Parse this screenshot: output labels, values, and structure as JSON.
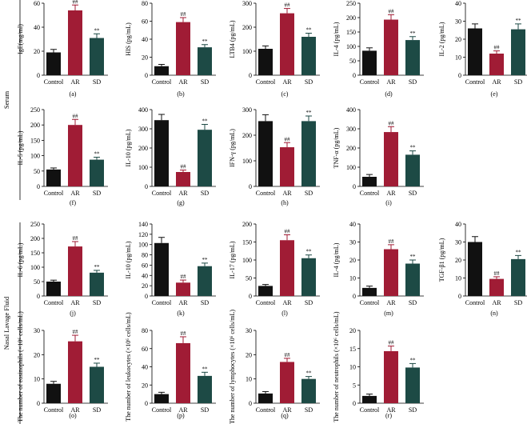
{
  "chart_data": {
    "type": "bar",
    "categories": [
      "Control",
      "AR",
      "SD"
    ],
    "colors": {
      "Control": "#111111",
      "AR": "#a01c35",
      "SD": "#1d4a45"
    },
    "group_labels": {
      "serum": "Serum",
      "nalf": "Nasal Lavage Fluid"
    },
    "panels": [
      {
        "id": "a",
        "panel_label": "(a)",
        "ylabel": "IgE(mg/ml)",
        "yticks": [
          "0",
          "20",
          "40",
          "60"
        ],
        "ylim": [
          0,
          60
        ],
        "values": [
          19,
          54,
          31
        ],
        "errors": [
          2.5,
          4.5,
          3.5
        ],
        "annotations": [
          "",
          "##",
          "**"
        ]
      },
      {
        "id": "b",
        "panel_label": "(b)",
        "ylabel": "HIS (pg/mL)",
        "yticks": [
          "0",
          "20",
          "40",
          "60",
          "80"
        ],
        "ylim": [
          0,
          80
        ],
        "values": [
          10,
          59,
          31
        ],
        "errors": [
          2,
          5,
          3
        ],
        "annotations": [
          "",
          "##",
          "**"
        ]
      },
      {
        "id": "c",
        "panel_label": "(c)",
        "ylabel": "LTB4 (pg/mL)",
        "yticks": [
          "0",
          "100",
          "200",
          "300"
        ],
        "ylim": [
          0,
          300
        ],
        "values": [
          110,
          258,
          160
        ],
        "errors": [
          12,
          20,
          15
        ],
        "annotations": [
          "",
          "##",
          "**"
        ]
      },
      {
        "id": "d",
        "panel_label": "(d)",
        "ylabel": "IL-4 (pg/mL)",
        "yticks": [
          "0",
          "50",
          "100",
          "150",
          "200",
          "250"
        ],
        "ylim": [
          0,
          250
        ],
        "values": [
          85,
          193,
          122
        ],
        "errors": [
          10,
          17,
          12
        ],
        "annotations": [
          "",
          "##",
          "**"
        ]
      },
      {
        "id": "e",
        "panel_label": "(e)",
        "ylabel": "IL-2 (pg/mL)",
        "yticks": [
          "0",
          "10",
          "20",
          "30",
          "40"
        ],
        "ylim": [
          0,
          40
        ],
        "values": [
          26,
          12,
          25.5
        ],
        "errors": [
          2.5,
          1.5,
          3
        ],
        "annotations": [
          "",
          "##",
          "**"
        ]
      },
      {
        "id": "f",
        "panel_label": "(f)",
        "ylabel": "IL-5 (pg/mL)",
        "yticks": [
          "0",
          "50",
          "100",
          "150",
          "200",
          "250"
        ],
        "ylim": [
          0,
          250
        ],
        "values": [
          55,
          200,
          87
        ],
        "errors": [
          5,
          18,
          8
        ],
        "annotations": [
          "",
          "##",
          "**"
        ]
      },
      {
        "id": "g",
        "panel_label": "(g)",
        "ylabel": "IL-10 (pg/mL)",
        "yticks": [
          "0",
          "100",
          "200",
          "300",
          "400"
        ],
        "ylim": [
          0,
          400
        ],
        "values": [
          345,
          75,
          295
        ],
        "errors": [
          30,
          10,
          28
        ],
        "annotations": [
          "",
          "##",
          "**"
        ]
      },
      {
        "id": "h",
        "panel_label": "(h)",
        "ylabel": "IFN-γ (pg/mL)",
        "yticks": [
          "0",
          "100",
          "200",
          "300"
        ],
        "ylim": [
          0,
          300
        ],
        "values": [
          255,
          153,
          255
        ],
        "errors": [
          25,
          18,
          20
        ],
        "annotations": [
          "",
          "##",
          "**"
        ]
      },
      {
        "id": "i",
        "panel_label": "(i)",
        "ylabel": "TNF-α (pg/mL)",
        "yticks": [
          "0",
          "100",
          "200",
          "300",
          "400"
        ],
        "ylim": [
          0,
          400
        ],
        "values": [
          50,
          283,
          165
        ],
        "errors": [
          12,
          28,
          20
        ],
        "annotations": [
          "",
          "##",
          "**"
        ]
      },
      {
        "id": "j",
        "panel_label": "(j)",
        "ylabel": "IL-6 (pg/mL)",
        "yticks": [
          "0",
          "50",
          "100",
          "150",
          "200",
          "250"
        ],
        "ylim": [
          0,
          250
        ],
        "values": [
          50,
          172,
          81
        ],
        "errors": [
          5,
          17,
          8
        ],
        "annotations": [
          "",
          "##",
          "**"
        ]
      },
      {
        "id": "k",
        "panel_label": "(k)",
        "ylabel": "IL-10 (pg/mL)",
        "yticks": [
          "0",
          "20",
          "40",
          "60",
          "80",
          "100",
          "120",
          "140"
        ],
        "ylim": [
          0,
          140
        ],
        "values": [
          103,
          26,
          58
        ],
        "errors": [
          11,
          5,
          6
        ],
        "annotations": [
          "",
          "##",
          "**"
        ],
        "note": "tick labels read as printed"
      },
      {
        "id": "l",
        "panel_label": "(l)",
        "ylabel": "IL-17 (pg/mL)",
        "yticks": [
          "0",
          "50",
          "100",
          "150",
          "200"
        ],
        "ylim": [
          0,
          200
        ],
        "values": [
          28,
          155,
          105
        ],
        "errors": [
          4,
          15,
          9
        ],
        "annotations": [
          "",
          "##",
          "**"
        ]
      },
      {
        "id": "m",
        "panel_label": "(m)",
        "ylabel": "IL-4 (pg/mL)",
        "yticks": [
          "0",
          "10",
          "20",
          "30",
          "40"
        ],
        "ylim": [
          0,
          40
        ],
        "values": [
          4.5,
          26,
          18
        ],
        "errors": [
          1,
          2.5,
          2
        ],
        "annotations": [
          "",
          "##",
          "**"
        ]
      },
      {
        "id": "n",
        "panel_label": "(n)",
        "ylabel": "TGF-β1 (pg/mL)",
        "yticks": [
          "0",
          "10",
          "20",
          "30",
          "40"
        ],
        "ylim": [
          0,
          40
        ],
        "values": [
          30,
          9.5,
          20.5
        ],
        "errors": [
          3,
          1.2,
          2
        ],
        "annotations": [
          "",
          "##",
          "**"
        ]
      },
      {
        "id": "o",
        "panel_label": "(o)",
        "ylabel": "The number of eosinophils (×10⁶ cells/mL)",
        "yticks": [
          "0",
          "10",
          "20",
          "30"
        ],
        "ylim": [
          0,
          30
        ],
        "values": [
          8,
          25.5,
          15
        ],
        "errors": [
          1,
          2.5,
          1.5
        ],
        "annotations": [
          "",
          "##",
          "**"
        ]
      },
      {
        "id": "p",
        "panel_label": "(p)",
        "ylabel": "The number of leukocytes (×10⁶ cells/mL)",
        "yticks": [
          "0",
          "20",
          "40",
          "60",
          "80"
        ],
        "ylim": [
          0,
          80
        ],
        "values": [
          10,
          66,
          30
        ],
        "errors": [
          2,
          7,
          4
        ],
        "annotations": [
          "",
          "##",
          "**"
        ]
      },
      {
        "id": "q",
        "panel_label": "(q)",
        "ylabel": "The number of lymphocytes (×10⁶ cells/mL)",
        "yticks": [
          "0",
          "10",
          "20",
          "30"
        ],
        "ylim": [
          0,
          30
        ],
        "values": [
          4,
          17,
          10
        ],
        "errors": [
          0.8,
          1.5,
          1
        ],
        "annotations": [
          "",
          "##",
          "**"
        ]
      },
      {
        "id": "r",
        "panel_label": "(r)",
        "ylabel": "The number of neutrophils (×10⁶ cells/mL)",
        "yticks": [
          "0",
          "5",
          "10",
          "15",
          "20"
        ],
        "ylim": [
          0,
          20
        ],
        "values": [
          2,
          14.3,
          9.8
        ],
        "errors": [
          0.5,
          1.4,
          1.1
        ],
        "annotations": [
          "",
          "##",
          "**"
        ]
      }
    ]
  }
}
